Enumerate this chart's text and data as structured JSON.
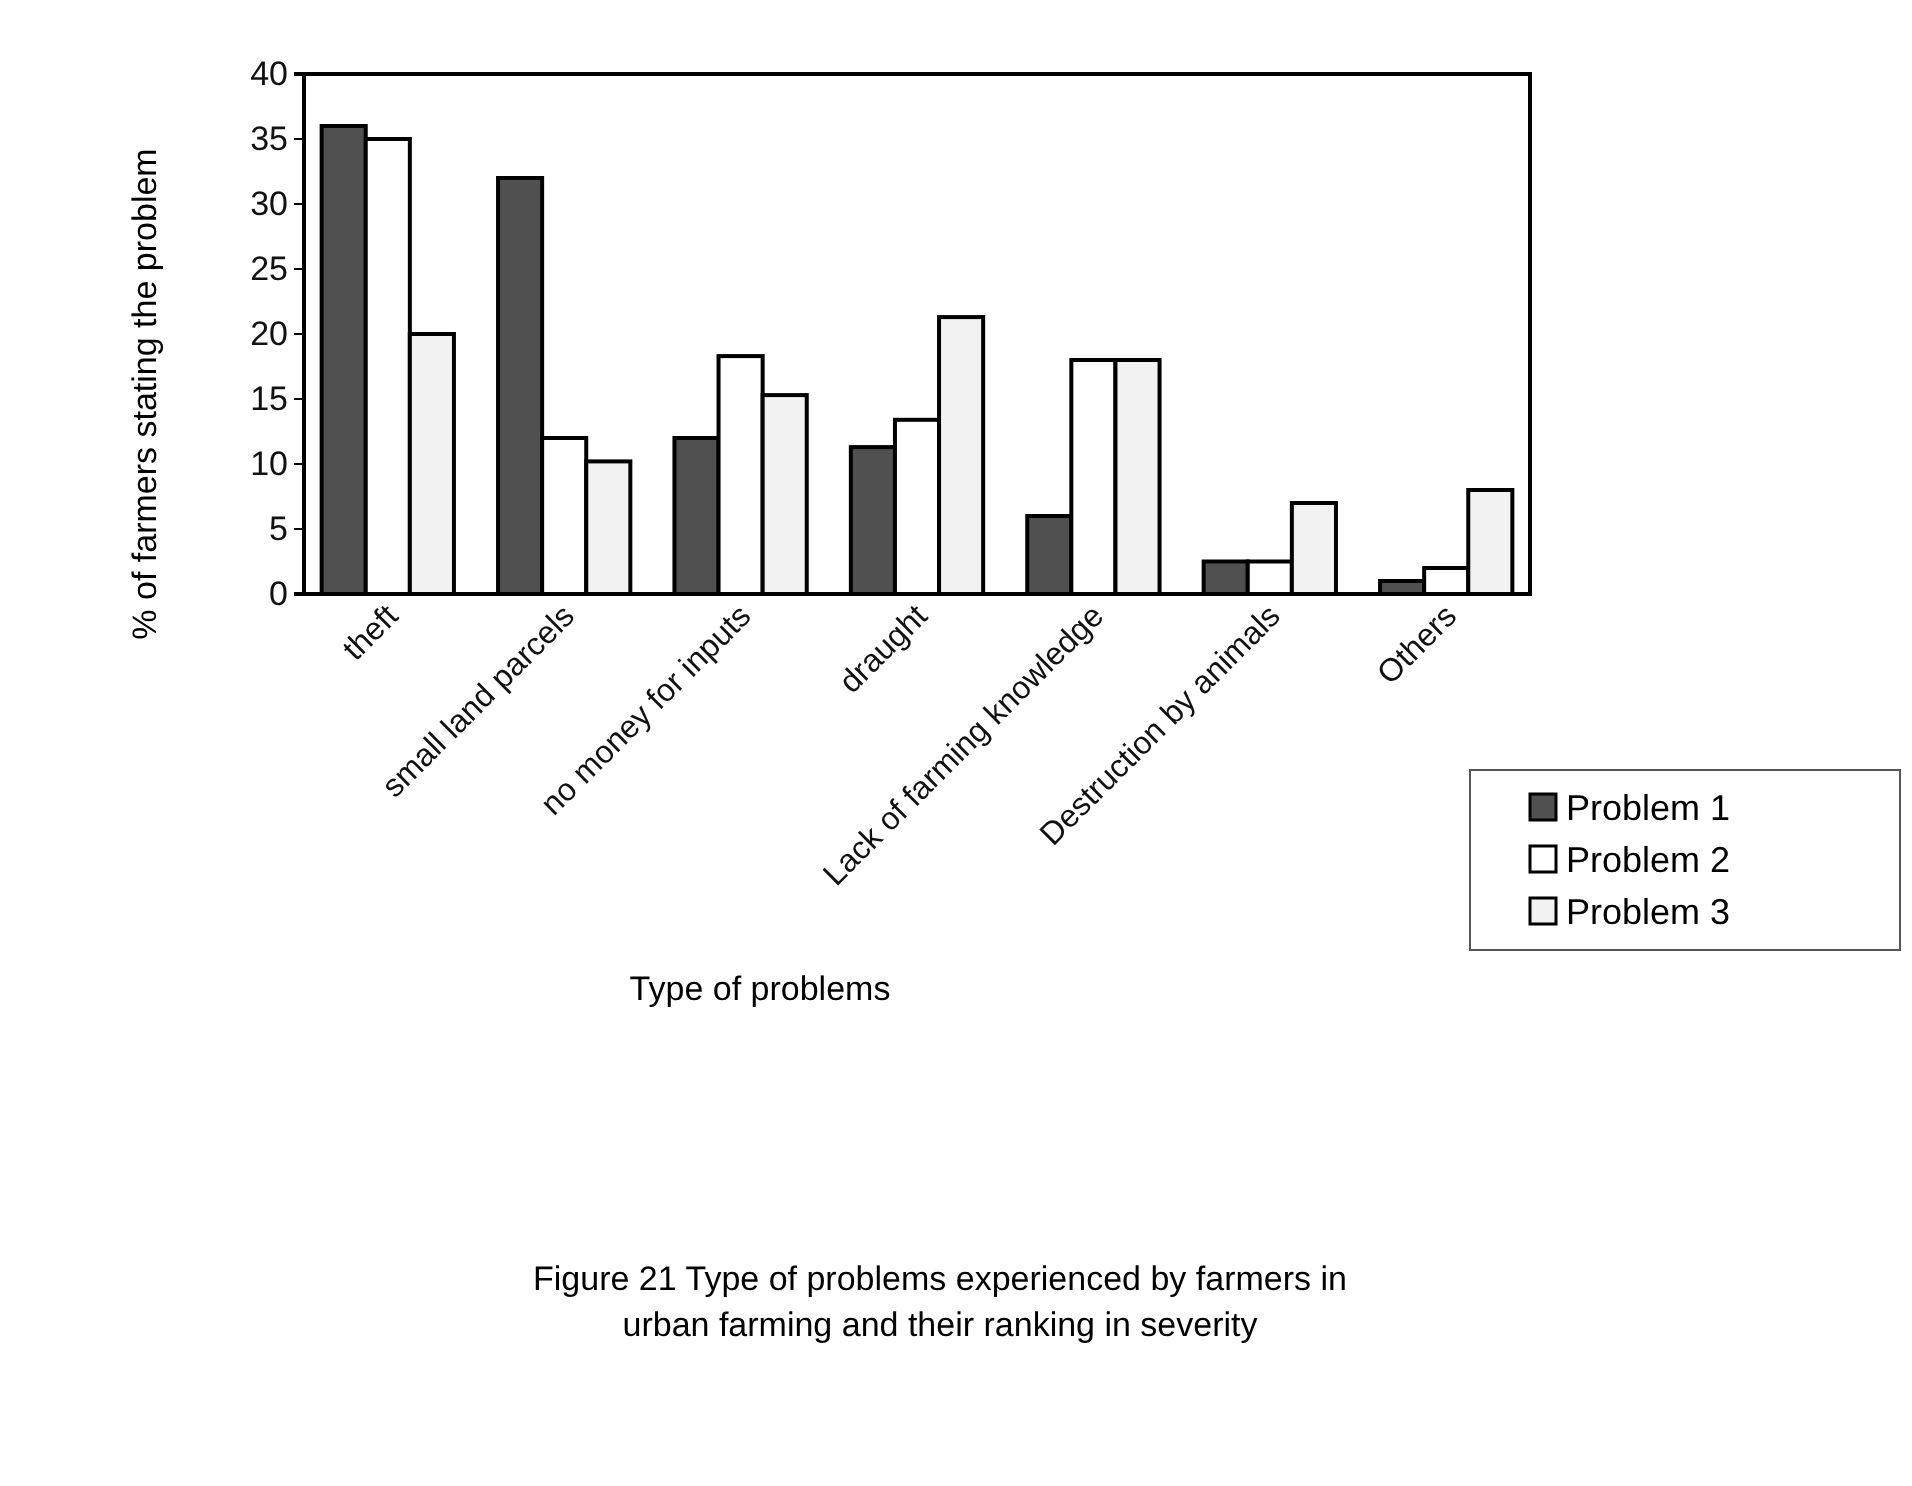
{
  "chart_data": {
    "type": "bar",
    "title": "Figure 21 Type of problems experienced by farmers in urban farming  and their ranking in severity",
    "xlabel": "Type of problems",
    "ylabel": "% of farmers stating the problem",
    "categories": [
      "theft",
      "small land parcels",
      "no money for inputs",
      "draught",
      "Lack of farming knowledge",
      "Destruction by animals",
      "Others"
    ],
    "series": [
      {
        "name": "Problem 1",
        "color": "#505050",
        "values": [
          36,
          32,
          12,
          11.3,
          6,
          2.5,
          1
        ]
      },
      {
        "name": "Problem 2",
        "color": "#ffffff",
        "values": [
          35,
          12,
          18.3,
          13.4,
          18,
          2.5,
          2
        ]
      },
      {
        "name": "Problem 3",
        "color": "#f2f2f2",
        "values": [
          20,
          10.2,
          15.3,
          21.3,
          18,
          7,
          8
        ]
      }
    ],
    "ylim": [
      0,
      40
    ],
    "yticks": [
      0,
      5,
      10,
      15,
      20,
      25,
      30,
      35,
      40
    ],
    "legend": "bottom right"
  }
}
